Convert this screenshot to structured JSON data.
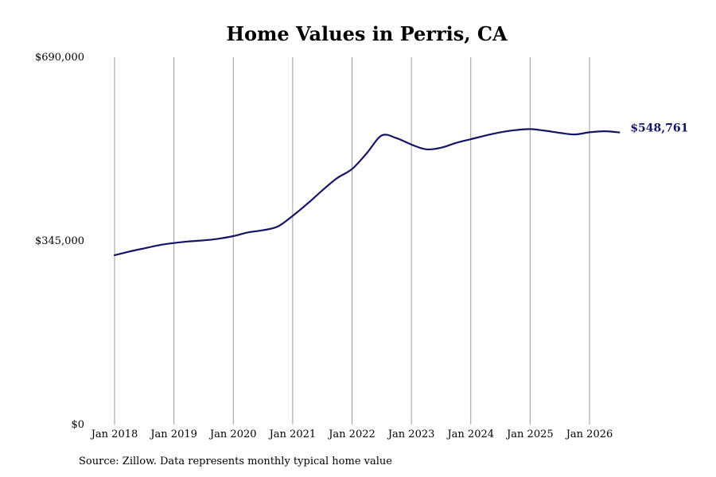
{
  "chart_data": {
    "type": "line",
    "title": "Home Values in Perris, CA",
    "xlabel": "",
    "ylabel": "",
    "ylim": [
      0,
      690000
    ],
    "yticks": [
      "$0",
      "$345,000",
      "$690,000"
    ],
    "xticks": [
      "Jan 2018",
      "Jan 2019",
      "Jan 2020",
      "Jan 2021",
      "Jan 2022",
      "Jan 2023",
      "Jan 2024",
      "Jan 2025",
      "Jan 2026"
    ],
    "grid": "vertical",
    "line_color": "#141466",
    "end_label": "$548,761",
    "series": [
      {
        "name": "",
        "points": [
          [
            "2018-01",
            318000
          ],
          [
            "2018-04",
            325000
          ],
          [
            "2018-07",
            331000
          ],
          [
            "2018-10",
            337000
          ],
          [
            "2019-01",
            341000
          ],
          [
            "2019-04",
            344000
          ],
          [
            "2019-07",
            346000
          ],
          [
            "2019-10",
            349000
          ],
          [
            "2020-01",
            354000
          ],
          [
            "2020-04",
            361000
          ],
          [
            "2020-07",
            365000
          ],
          [
            "2020-10",
            372000
          ],
          [
            "2021-01",
            392000
          ],
          [
            "2021-04",
            415000
          ],
          [
            "2021-07",
            440000
          ],
          [
            "2021-10",
            463000
          ],
          [
            "2022-01",
            480000
          ],
          [
            "2022-04",
            510000
          ],
          [
            "2022-07",
            543000
          ],
          [
            "2022-10",
            538000
          ],
          [
            "2023-01",
            526000
          ],
          [
            "2023-04",
            517000
          ],
          [
            "2023-07",
            520000
          ],
          [
            "2023-10",
            529000
          ],
          [
            "2024-01",
            536000
          ],
          [
            "2024-04",
            543000
          ],
          [
            "2024-07",
            549000
          ],
          [
            "2024-10",
            553000
          ],
          [
            "2025-01",
            555000
          ],
          [
            "2025-04",
            552000
          ],
          [
            "2025-07",
            548000
          ],
          [
            "2025-10",
            545000
          ],
          [
            "2026-01",
            549000
          ],
          [
            "2026-04",
            551000
          ],
          [
            "2026-07",
            548761
          ]
        ]
      }
    ]
  },
  "source": "Source: Zillow. Data represents monthly typical home value"
}
